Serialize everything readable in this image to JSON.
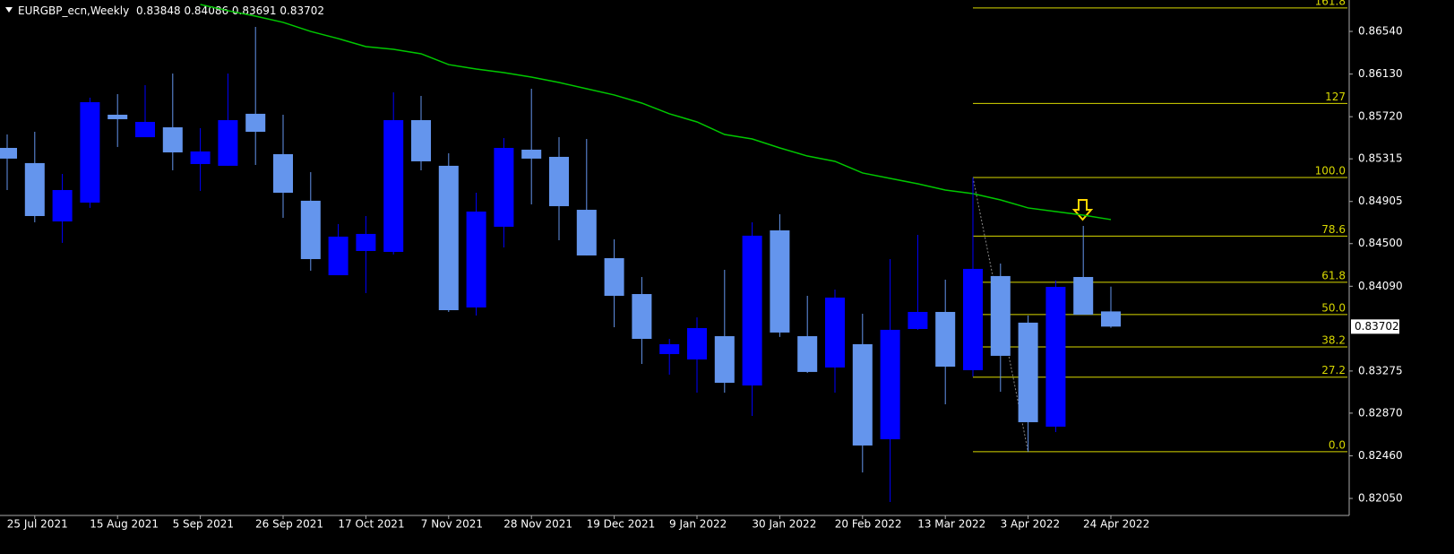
{
  "chart_data": {
    "type": "candlestick",
    "title": "EURGBP_ecn,Weekly",
    "categories": [
      null,
      "25 Jul 2021",
      null,
      null,
      "15 Aug 2021",
      null,
      null,
      "5 Sep 2021",
      null,
      null,
      "26 Sep 2021",
      null,
      null,
      "17 Oct 2021",
      null,
      null,
      "7 Nov 2021",
      null,
      null,
      "28 Nov 2021",
      null,
      null,
      "19 Dec 2021",
      null,
      null,
      "9 Jan 2022",
      null,
      null,
      "30 Jan 2022",
      null,
      null,
      "20 Feb 2022",
      null,
      null,
      "13 Mar 2022",
      null,
      null,
      "3 Apr 2022",
      null,
      null,
      "24 Apr 2022"
    ],
    "open": [
      0.8542,
      0.85274,
      0.84713,
      0.84894,
      0.85739,
      0.85523,
      0.85618,
      0.85265,
      0.85248,
      0.85748,
      0.8536,
      0.84912,
      0.84196,
      0.84429,
      0.8442,
      0.85687,
      0.85248,
      0.83886,
      0.84662,
      0.85403,
      0.85334,
      0.84825,
      0.8436,
      0.84015,
      0.83438,
      0.83386,
      0.8361,
      0.83136,
      0.84627,
      0.8361,
      0.83309,
      0.83533,
      0.82619,
      0.83679,
      0.83843,
      0.83283,
      0.84188,
      0.8374,
      0.8274,
      0.84179,
      0.83848
    ],
    "high": [
      0.85549,
      0.85575,
      0.8517,
      0.85903,
      0.85937,
      0.86023,
      0.86135,
      0.8561,
      0.86135,
      0.86583,
      0.85739,
      0.85187,
      0.84688,
      0.84765,
      0.85954,
      0.8592,
      0.85368,
      0.84989,
      0.85515,
      0.85989,
      0.85523,
      0.85506,
      0.84541,
      0.84179,
      0.83584,
      0.83791,
      0.84248,
      0.84705,
      0.84782,
      0.83998,
      0.84058,
      0.83826,
      0.84351,
      0.84584,
      0.84153,
      0.85136,
      0.84308,
      0.83808,
      0.84145,
      0.8467,
      0.84086
    ],
    "low": [
      0.85015,
      0.84705,
      0.84507,
      0.84843,
      0.85429,
      0.85523,
      0.85205,
      0.85006,
      0.85248,
      0.85256,
      0.84748,
      0.84239,
      0.84196,
      0.84024,
      0.84395,
      0.85205,
      0.83843,
      0.83808,
      0.84463,
      0.84877,
      0.84532,
      0.84386,
      0.83696,
      0.83343,
      0.8324,
      0.83067,
      0.83067,
      0.82843,
      0.83602,
      0.83257,
      0.83067,
      0.823,
      0.82016,
      0.83671,
      0.82955,
      0.83222,
      0.83076,
      0.82499,
      0.82688,
      0.83817,
      0.83691
    ],
    "close": [
      0.85317,
      0.84765,
      0.85015,
      0.8586,
      0.85696,
      0.8567,
      0.85377,
      0.85386,
      0.85687,
      0.85575,
      0.84989,
      0.84351,
      0.84567,
      0.84593,
      0.85687,
      0.85291,
      0.8386,
      0.84808,
      0.8542,
      0.85317,
      0.8486,
      0.84386,
      0.83998,
      0.83584,
      0.83533,
      0.83688,
      0.83162,
      0.84576,
      0.83645,
      0.83266,
      0.83981,
      0.82559,
      0.83671,
      0.83843,
      0.83317,
      0.84257,
      0.83421,
      0.82783,
      0.84084,
      0.83817,
      0.83702
    ],
    "up_color": "#0000ff",
    "down_color": "#6495ed",
    "ma": {
      "color": "#00c800",
      "values": [
        null,
        null,
        null,
        null,
        null,
        null,
        null,
        0.86799,
        0.86739,
        0.86687,
        0.86627,
        0.8654,
        0.86471,
        0.86394,
        0.86368,
        0.86325,
        0.86221,
        0.86178,
        0.86144,
        0.86101,
        0.86049,
        0.85989,
        0.85929,
        0.85851,
        0.85748,
        0.8567,
        0.85549,
        0.85506,
        0.8542,
        0.85342,
        0.85291,
        0.85179,
        0.85127,
        0.85075,
        0.85015,
        0.8498,
        0.8492,
        0.84843,
        0.84808,
        0.84774,
        0.84731
      ]
    },
    "fib": {
      "high": 0.85136,
      "low": 0.82499,
      "color": "#d8d800",
      "levels": [
        161.8,
        127,
        {
          "value": 100,
          "label": "100.0"
        },
        78.6,
        61.8,
        {
          "value": 50,
          "label": "50.0"
        },
        38.2,
        27.2,
        {
          "value": 0,
          "label": "0.0"
        }
      ]
    },
    "ylim": [
      0.81895,
      0.86842
    ],
    "yticks": [
      {
        "value": 0.8654,
        "label": "0.86540"
      },
      {
        "value": 0.8613,
        "label": "0.86130"
      },
      {
        "value": 0.8572,
        "label": "0.85720"
      },
      0.85315,
      0.84905,
      {
        "value": 0.845,
        "label": "0.84500"
      },
      {
        "value": 0.8409,
        "label": "0.84090"
      },
      0.83275,
      {
        "value": 0.8287,
        "label": "0.82870"
      },
      {
        "value": 0.8246,
        "label": "0.82460"
      },
      {
        "value": 0.8205,
        "label": "0.82050"
      }
    ]
  }
}
